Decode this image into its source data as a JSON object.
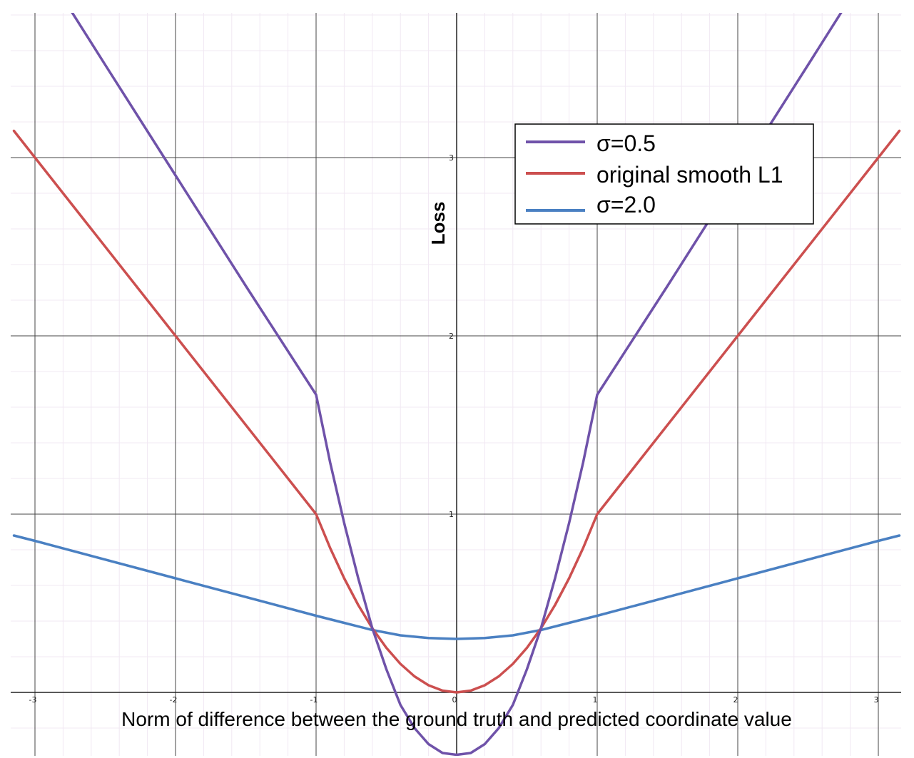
{
  "chart_data": {
    "type": "line",
    "title": "",
    "xlabel": "Norm of difference between the ground truth and predicted coordinate value",
    "ylabel": "Loss",
    "xlim": [
      -3.15,
      3.15
    ],
    "ylim": [
      -0.33,
      3.82
    ],
    "grid": true,
    "legend_position": "top-right",
    "x_ticks": [
      -3,
      -2,
      -1,
      0,
      1,
      2,
      3
    ],
    "y_ticks": [
      1,
      2,
      3
    ],
    "x_tick_labels": [
      "-3",
      "-2",
      "-1",
      "0",
      "1",
      "2",
      "3"
    ],
    "y_tick_labels": [
      "1",
      "2",
      "3"
    ],
    "series": [
      {
        "name": "σ=0.5",
        "color": "#6f52a9",
        "x": [
          -3.15,
          -2.5,
          -2.0,
          -1.5,
          -1.0,
          -0.9,
          -0.8,
          -0.7,
          -0.6,
          -0.5,
          -0.4,
          -0.3,
          -0.2,
          -0.1,
          0.0,
          0.1,
          0.2,
          0.3,
          0.4,
          0.5,
          0.6,
          0.7,
          0.8,
          0.9,
          1.0,
          1.5,
          2.0,
          2.5,
          3.15
        ],
        "y": [
          4.33,
          3.52,
          2.9,
          2.28,
          1.67,
          1.29,
          0.95,
          0.64,
          0.36,
          0.13,
          -0.07,
          -0.2,
          -0.29,
          -0.34,
          -0.35,
          -0.34,
          -0.29,
          -0.2,
          -0.07,
          0.13,
          0.36,
          0.64,
          0.95,
          1.29,
          1.67,
          2.28,
          2.9,
          3.52,
          4.33
        ]
      },
      {
        "name": "original smooth L1",
        "color": "#cc4f4f",
        "x": [
          -3.15,
          -3.0,
          -2.0,
          -1.0,
          -0.9,
          -0.8,
          -0.7,
          -0.6,
          -0.5,
          -0.4,
          -0.3,
          -0.2,
          -0.1,
          0.0,
          0.1,
          0.2,
          0.3,
          0.4,
          0.5,
          0.6,
          0.7,
          0.8,
          0.9,
          1.0,
          2.0,
          3.0,
          3.15
        ],
        "y": [
          3.15,
          3.0,
          2.0,
          1.0,
          0.81,
          0.64,
          0.49,
          0.36,
          0.25,
          0.16,
          0.09,
          0.04,
          0.01,
          0.0,
          0.01,
          0.04,
          0.09,
          0.16,
          0.25,
          0.36,
          0.49,
          0.64,
          0.81,
          1.0,
          2.0,
          3.0,
          3.15
        ]
      },
      {
        "name": "σ=2.0",
        "color": "#4a80c2",
        "x": [
          -3.15,
          -3.0,
          -2.0,
          -1.0,
          -0.8,
          -0.6,
          -0.4,
          -0.2,
          0.0,
          0.2,
          0.4,
          0.6,
          0.8,
          1.0,
          2.0,
          3.0,
          3.15
        ],
        "y": [
          0.88,
          0.85,
          0.64,
          0.43,
          0.39,
          0.35,
          0.32,
          0.305,
          0.3,
          0.305,
          0.32,
          0.35,
          0.39,
          0.43,
          0.64,
          0.85,
          0.88
        ]
      }
    ]
  }
}
